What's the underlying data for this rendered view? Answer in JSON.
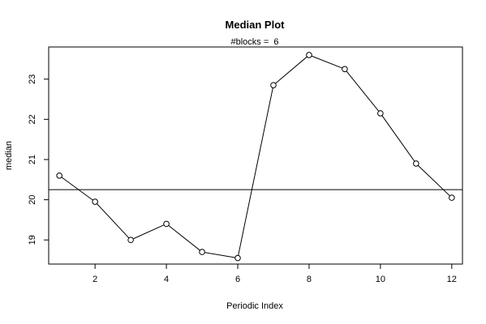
{
  "chart_data": {
    "type": "line",
    "title": "Median Plot",
    "subtitle": "#blocks =  6",
    "xlabel": "Periodic Index",
    "ylabel": "median",
    "xlim": [
      0.7,
      12.3
    ],
    "ylim": [
      18.4,
      23.8
    ],
    "x": [
      1,
      2,
      3,
      4,
      5,
      6,
      7,
      8,
      9,
      10,
      11,
      12
    ],
    "series": [
      {
        "values": [
          20.6,
          19.95,
          19.0,
          19.4,
          18.7,
          18.55,
          22.85,
          23.6,
          23.25,
          22.15,
          20.9,
          20.05
        ]
      }
    ],
    "hline": 20.25,
    "xticks": [
      2,
      4,
      6,
      8,
      10,
      12
    ],
    "yticks": [
      19,
      20,
      21,
      22,
      23
    ],
    "grid": false,
    "legend": "none",
    "line_color": "#000000",
    "marker": "open-circle"
  }
}
